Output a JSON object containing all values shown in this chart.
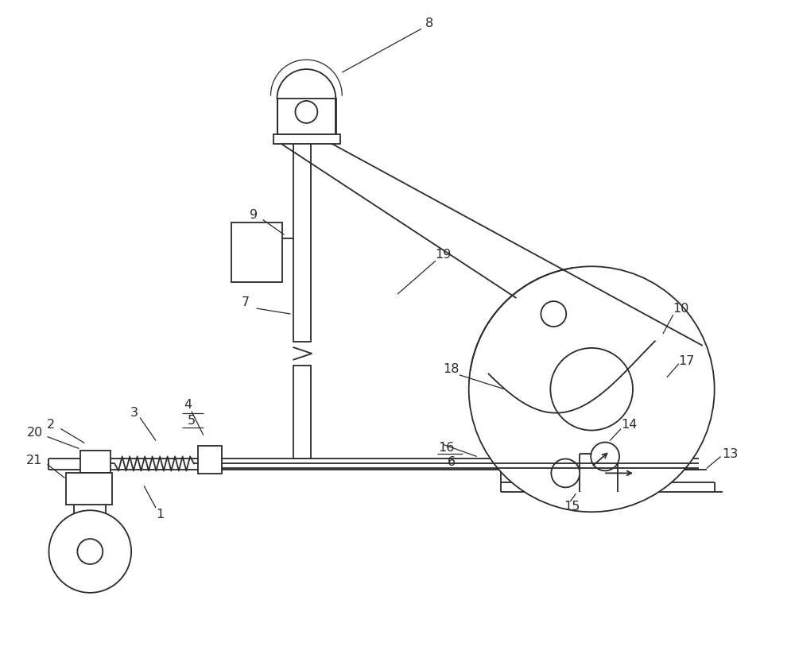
{
  "bg_color": "#ffffff",
  "line_color": "#2a2a2a",
  "label_color": "#2a2a2a",
  "fig_width": 10.0,
  "fig_height": 8.23,
  "dpi": 100
}
